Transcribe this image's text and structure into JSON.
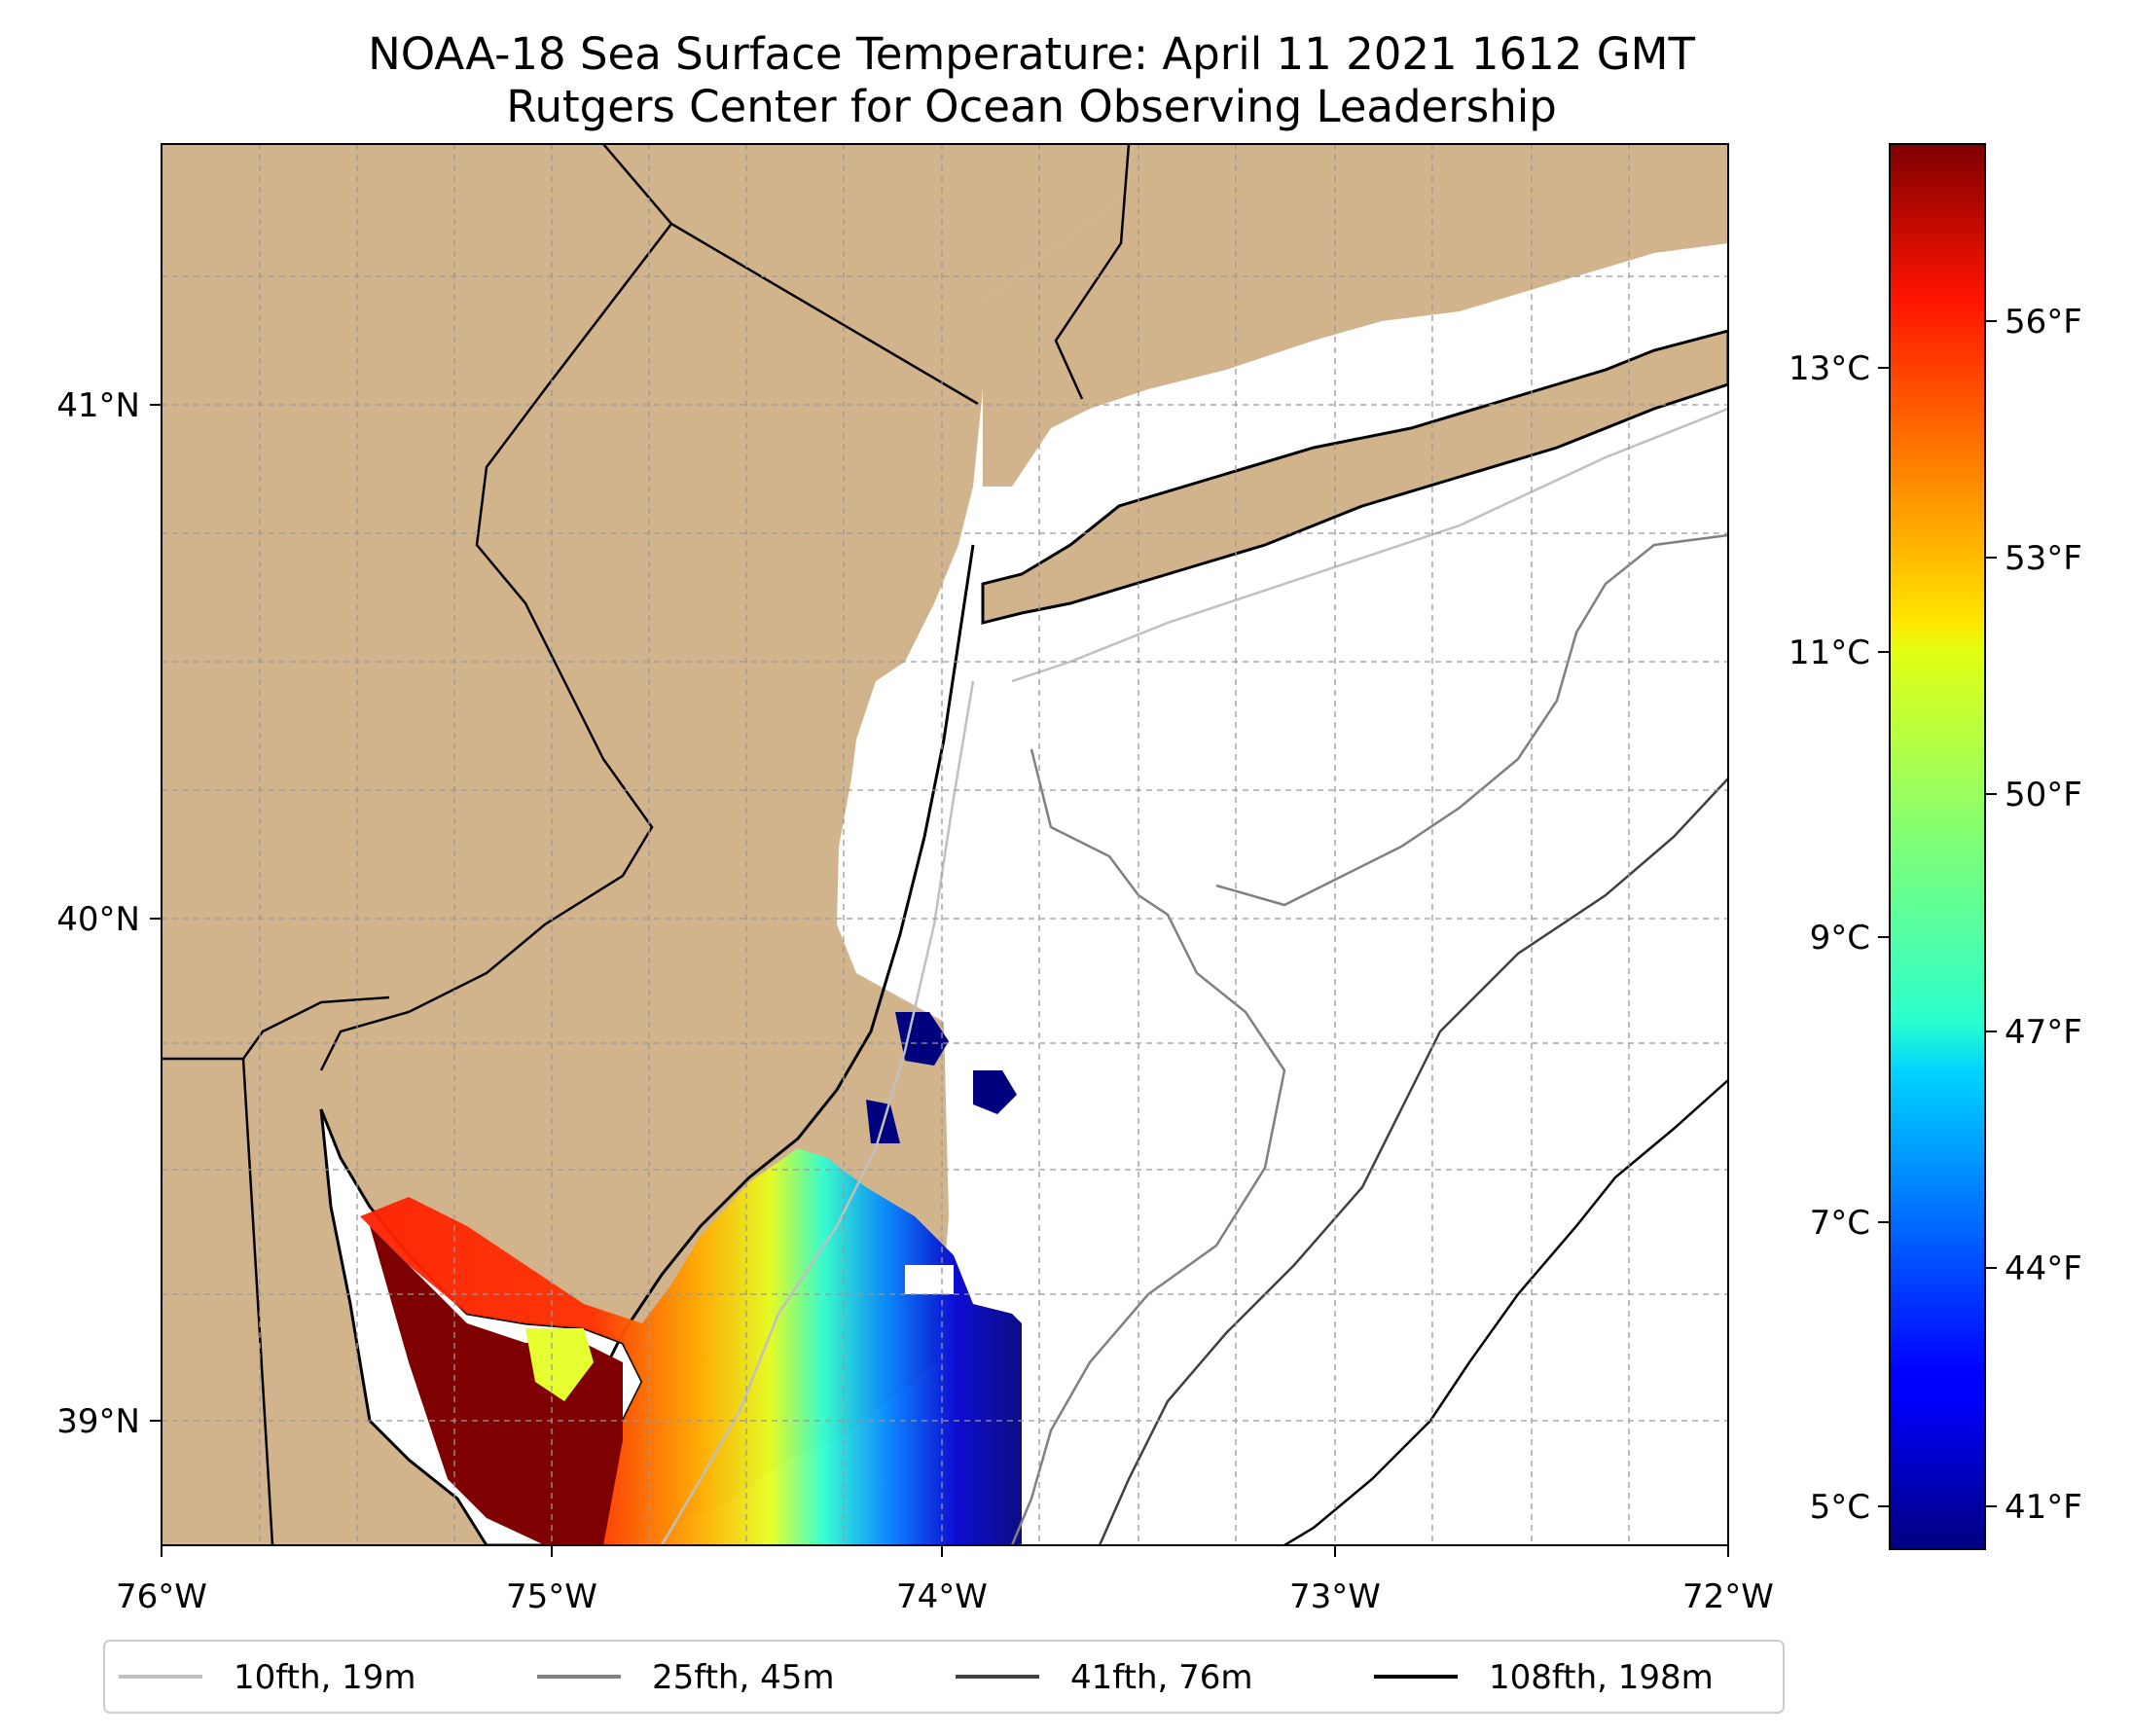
{
  "title_line1": "NOAA-18 Sea Surface Temperature: April 11 2021 1612 GMT",
  "title_line2": "Rutgers Center for Ocean Observing Leadership",
  "map": {
    "lon_range": [
      -76,
      -72
    ],
    "lat_range": [
      38.75,
      41.5
    ],
    "lon_ticks": [
      "76°W",
      "75°W",
      "74°W",
      "73°W",
      "72°W"
    ],
    "lat_ticks": [
      "41°N",
      "40°N",
      "39°N"
    ],
    "land_color": "#d2b48c",
    "gridlines": true
  },
  "colorbar": {
    "colormap": "jet",
    "celsius_ticks": [
      "13°C",
      "11°C",
      "9°C",
      "7°C",
      "5°C"
    ],
    "fahrenheit_ticks": [
      "56°F",
      "53°F",
      "50°F",
      "47°F",
      "44°F",
      "41°F"
    ],
    "range_c": [
      4.7,
      14.6
    ]
  },
  "legend": {
    "placement": "bottom",
    "items": [
      {
        "label": "10fth, 19m",
        "color": "#c0c0c0"
      },
      {
        "label": "25fth, 45m",
        "color": "#808080"
      },
      {
        "label": "41fth, 76m",
        "color": "#404040"
      },
      {
        "label": "108fth, 198m",
        "color": "#000000"
      }
    ]
  }
}
